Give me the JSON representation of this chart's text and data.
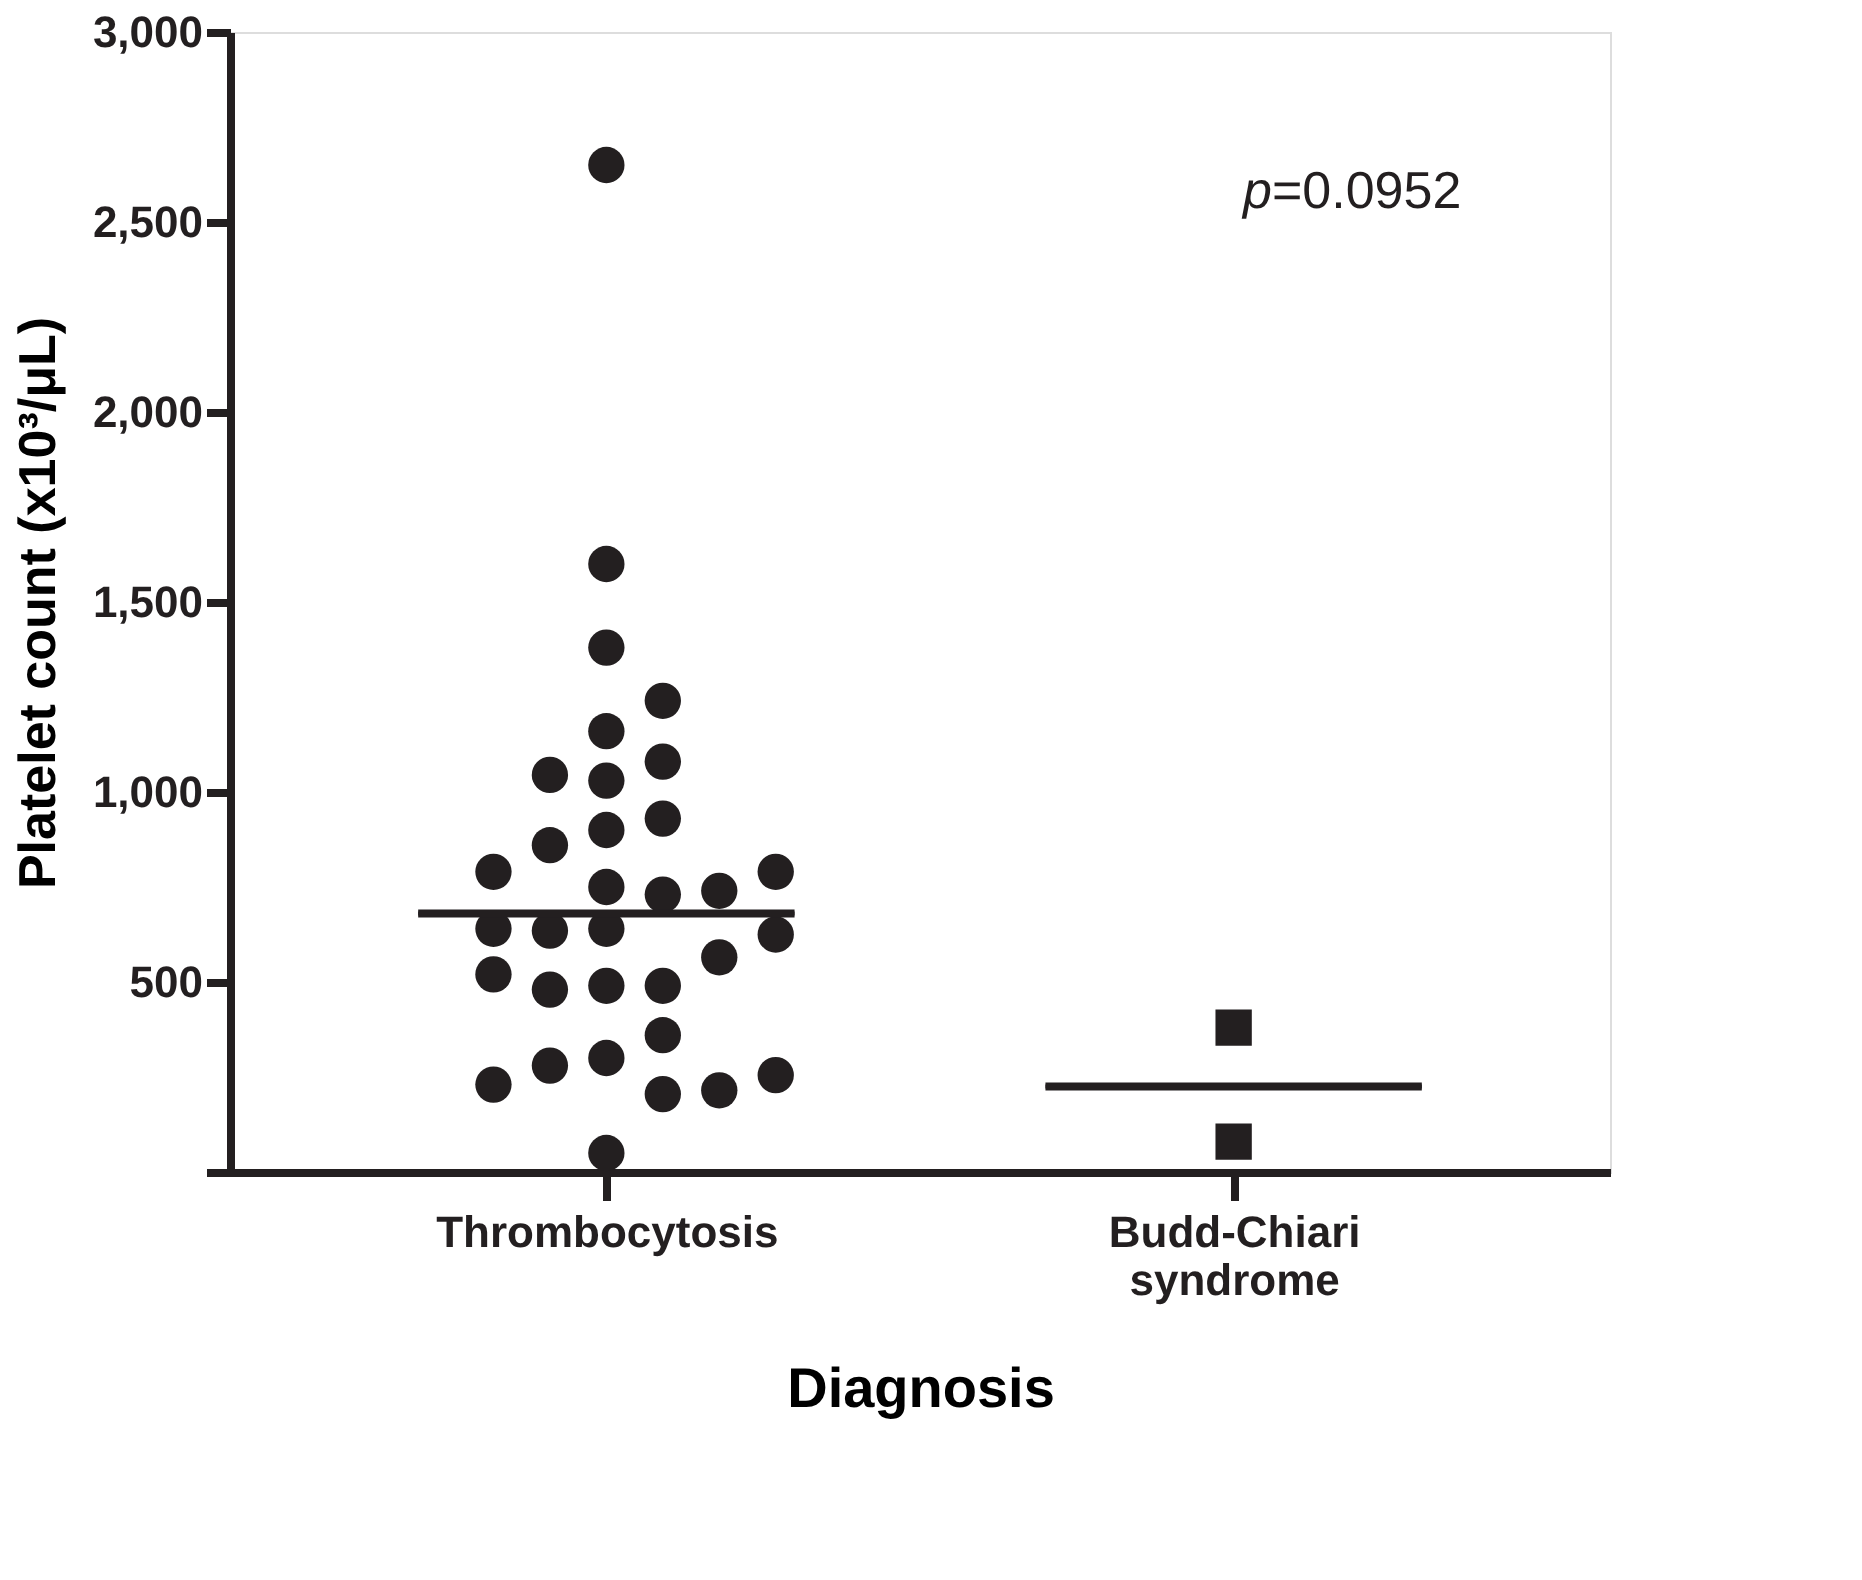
{
  "chart_data": {
    "type": "scatter",
    "xlabel": "Diagnosis",
    "ylabel": "Platelet count (x10³/μL)",
    "categories": [
      "Thrombocytosis",
      "Budd-Chiari syndrome"
    ],
    "series": [
      {
        "marker": "circle",
        "color": "#231f20",
        "x": [
          "Thrombocytosis",
          "Thrombocytosis",
          "Thrombocytosis",
          "Thrombocytosis",
          "Thrombocytosis",
          "Thrombocytosis",
          "Thrombocytosis",
          "Thrombocytosis",
          "Thrombocytosis",
          "Thrombocytosis",
          "Thrombocytosis",
          "Thrombocytosis",
          "Thrombocytosis",
          "Thrombocytosis",
          "Thrombocytosis",
          "Thrombocytosis",
          "Thrombocytosis",
          "Thrombocytosis",
          "Thrombocytosis",
          "Thrombocytosis",
          "Thrombocytosis",
          "Thrombocytosis",
          "Thrombocytosis",
          "Thrombocytosis",
          "Thrombocytosis",
          "Thrombocytosis",
          "Thrombocytosis",
          "Thrombocytosis",
          "Thrombocytosis",
          "Thrombocytosis",
          "Thrombocytosis",
          "Thrombocytosis",
          "Thrombocytosis"
        ],
        "values": [
          2650,
          1600,
          1380,
          1160,
          1030,
          900,
          750,
          640,
          490,
          300,
          205,
          50,
          1240,
          930,
          730,
          635,
          490,
          280,
          860,
          740,
          640,
          480,
          360,
          215,
          1080,
          790,
          565,
          230,
          1045,
          790,
          625,
          520,
          255
        ]
      },
      {
        "type": "scatter",
        "marker": "square",
        "color": "#231f20",
        "x": [
          "Budd-Chiari syndrome",
          "Budd-Chiari syndrome"
        ],
        "values": [
          380,
          80
        ]
      },
      {
        "type": "box",
        "color": "#231f20",
        "boxes": [
          {
            "low": 680,
            "q1": 680,
            "median": 680,
            "q3": 680,
            "high": 680
          },
          {
            "low": 225,
            "q1": 225,
            "median": 225,
            "q3": 225,
            "high": 225
          }
        ]
      }
    ],
    "ylim": [
      0,
      3000
    ],
    "yticks": [
      {
        "value": 0,
        "label": null
      },
      {
        "value": 500,
        "label": "500"
      },
      {
        "value": 1000,
        "label": "1,000"
      },
      {
        "value": 1500,
        "label": "1,500"
      },
      {
        "value": 2000,
        "label": "2,000"
      },
      {
        "value": 2500,
        "label": "2,500"
      },
      {
        "value": 3000,
        "label": "3,000"
      }
    ],
    "grid": false,
    "annotations": [
      {
        "text": "p=0.0952"
      }
    ]
  }
}
